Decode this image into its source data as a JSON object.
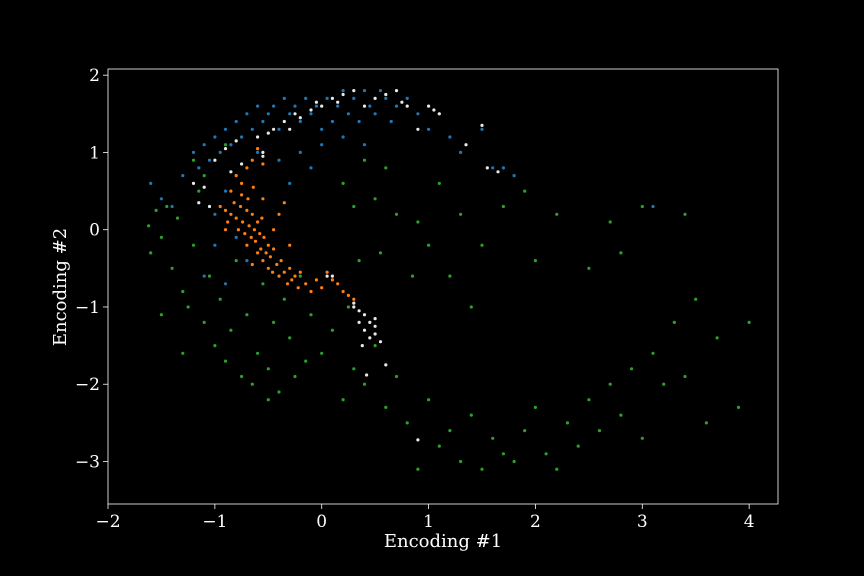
{
  "chart_data": {
    "type": "scatter",
    "xlabel": "Encoding #1",
    "ylabel": "Encoding #2",
    "xlim": [
      -2.0,
      4.27
    ],
    "ylim": [
      -3.55,
      2.08
    ],
    "xticks": [
      -2,
      -1,
      0,
      1,
      2,
      3,
      4
    ],
    "yticks": [
      -3,
      -2,
      -1,
      0,
      1,
      2
    ],
    "xtick_labels": [
      "−2",
      "−1",
      "0",
      "1",
      "2",
      "3",
      "4"
    ],
    "ytick_labels": [
      "−3",
      "−2",
      "−1",
      "0",
      "1",
      "2"
    ],
    "grid": false,
    "background": "#000000",
    "series": [
      {
        "color": "#2ca02c",
        "values": [
          [
            -1.62,
            0.05
          ],
          [
            -1.55,
            0.25
          ],
          [
            -1.5,
            -0.1
          ],
          [
            -1.45,
            0.3
          ],
          [
            -1.6,
            -0.3
          ],
          [
            -1.4,
            -0.5
          ],
          [
            -1.35,
            0.15
          ],
          [
            -1.3,
            -0.8
          ],
          [
            -1.25,
            -1.0
          ],
          [
            -1.2,
            -0.2
          ],
          [
            -1.15,
            0.5
          ],
          [
            -1.1,
            -1.2
          ],
          [
            -1.05,
            -0.6
          ],
          [
            -1.0,
            -1.5
          ],
          [
            -0.95,
            -0.9
          ],
          [
            -0.9,
            -1.7
          ],
          [
            -0.85,
            -1.3
          ],
          [
            -0.8,
            -0.4
          ],
          [
            -0.75,
            -1.9
          ],
          [
            -0.7,
            -1.1
          ],
          [
            -0.65,
            -2.0
          ],
          [
            -0.6,
            -1.6
          ],
          [
            -0.55,
            -0.7
          ],
          [
            -0.5,
            -1.8
          ],
          [
            -0.45,
            -1.2
          ],
          [
            -0.4,
            -2.1
          ],
          [
            -0.35,
            -0.9
          ],
          [
            -0.3,
            -1.4
          ],
          [
            -0.25,
            -1.9
          ],
          [
            -0.2,
            -0.6
          ],
          [
            -0.15,
            -1.7
          ],
          [
            -0.1,
            -1.1
          ],
          [
            0.0,
            -1.6
          ],
          [
            0.1,
            -1.3
          ],
          [
            0.2,
            -2.2
          ],
          [
            0.25,
            -1.0
          ],
          [
            0.3,
            -1.8
          ],
          [
            0.35,
            -0.4
          ],
          [
            0.4,
            -2.0
          ],
          [
            0.5,
            -1.5
          ],
          [
            0.55,
            -0.3
          ],
          [
            0.6,
            -2.3
          ],
          [
            0.7,
            -1.9
          ],
          [
            0.8,
            -2.5
          ],
          [
            0.9,
            -3.1
          ],
          [
            1.0,
            -2.2
          ],
          [
            1.1,
            -2.8
          ],
          [
            1.2,
            -2.6
          ],
          [
            1.3,
            -3.0
          ],
          [
            1.4,
            -2.4
          ],
          [
            1.5,
            -3.1
          ],
          [
            1.6,
            -2.7
          ],
          [
            1.7,
            -2.9
          ],
          [
            1.8,
            -3.0
          ],
          [
            1.9,
            -2.6
          ],
          [
            2.0,
            -2.3
          ],
          [
            2.1,
            -2.9
          ],
          [
            2.2,
            -3.1
          ],
          [
            2.3,
            -2.5
          ],
          [
            2.4,
            -2.8
          ],
          [
            2.5,
            -2.2
          ],
          [
            2.6,
            -2.6
          ],
          [
            2.7,
            -2.0
          ],
          [
            2.8,
            -2.4
          ],
          [
            2.9,
            -1.8
          ],
          [
            3.0,
            -2.7
          ],
          [
            3.1,
            -1.6
          ],
          [
            3.2,
            -2.0
          ],
          [
            3.3,
            -1.2
          ],
          [
            3.4,
            -1.9
          ],
          [
            3.5,
            -0.9
          ],
          [
            3.6,
            -2.5
          ],
          [
            3.7,
            -1.4
          ],
          [
            3.9,
            -2.3
          ],
          [
            4.0,
            -1.2
          ],
          [
            3.4,
            0.2
          ],
          [
            3.0,
            0.3
          ],
          [
            2.8,
            -0.3
          ],
          [
            2.7,
            0.1
          ],
          [
            2.5,
            -0.5
          ],
          [
            2.2,
            0.2
          ],
          [
            2.0,
            -0.4
          ],
          [
            1.9,
            0.5
          ],
          [
            1.7,
            0.3
          ],
          [
            1.5,
            -0.2
          ],
          [
            1.4,
            -1.0
          ],
          [
            1.3,
            0.2
          ],
          [
            1.2,
            -0.6
          ],
          [
            1.1,
            0.6
          ],
          [
            1.0,
            -0.2
          ],
          [
            0.9,
            0.1
          ],
          [
            0.85,
            -0.6
          ],
          [
            0.7,
            0.2
          ],
          [
            0.6,
            0.8
          ],
          [
            0.5,
            0.4
          ],
          [
            0.4,
            0.9
          ],
          [
            0.3,
            0.3
          ],
          [
            0.2,
            0.6
          ],
          [
            -1.2,
            0.9
          ],
          [
            -1.1,
            0.7
          ],
          [
            -0.9,
            1.1
          ],
          [
            -1.3,
            -1.6
          ],
          [
            -1.5,
            -1.1
          ],
          [
            -0.5,
            -2.2
          ]
        ]
      },
      {
        "color": "#1f77b4",
        "values": [
          [
            -1.6,
            0.6
          ],
          [
            -1.5,
            0.4
          ],
          [
            -1.4,
            0.3
          ],
          [
            -1.3,
            0.7
          ],
          [
            -1.2,
            1.0
          ],
          [
            -1.15,
            0.8
          ],
          [
            -1.1,
            1.1
          ],
          [
            -1.05,
            0.9
          ],
          [
            -1.0,
            1.2
          ],
          [
            -0.95,
            1.0
          ],
          [
            -0.9,
            1.3
          ],
          [
            -0.85,
            1.1
          ],
          [
            -0.8,
            1.4
          ],
          [
            -0.75,
            1.2
          ],
          [
            -0.7,
            1.5
          ],
          [
            -0.65,
            1.3
          ],
          [
            -0.6,
            1.6
          ],
          [
            -0.55,
            1.4
          ],
          [
            -0.5,
            1.5
          ],
          [
            -0.45,
            1.6
          ],
          [
            -0.4,
            1.3
          ],
          [
            -0.35,
            1.7
          ],
          [
            -0.3,
            1.5
          ],
          [
            -0.25,
            1.6
          ],
          [
            -0.2,
            1.4
          ],
          [
            -0.15,
            1.7
          ],
          [
            -0.1,
            1.5
          ],
          [
            -0.05,
            1.6
          ],
          [
            0.0,
            1.3
          ],
          [
            0.05,
            1.7
          ],
          [
            0.1,
            1.4
          ],
          [
            0.15,
            1.6
          ],
          [
            0.2,
            1.8
          ],
          [
            0.25,
            1.5
          ],
          [
            0.3,
            1.7
          ],
          [
            0.35,
            1.4
          ],
          [
            0.4,
            1.8
          ],
          [
            0.45,
            1.6
          ],
          [
            0.5,
            1.5
          ],
          [
            0.55,
            1.8
          ],
          [
            0.6,
            1.7
          ],
          [
            0.65,
            1.4
          ],
          [
            0.7,
            1.6
          ],
          [
            0.8,
            1.7
          ],
          [
            0.9,
            1.5
          ],
          [
            1.0,
            1.3
          ],
          [
            1.1,
            1.5
          ],
          [
            1.2,
            1.2
          ],
          [
            1.3,
            1.0
          ],
          [
            1.5,
            1.3
          ],
          [
            1.7,
            0.8
          ],
          [
            1.8,
            0.7
          ],
          [
            1.6,
            0.8
          ],
          [
            3.1,
            0.3
          ],
          [
            -1.0,
            0.2
          ],
          [
            -0.9,
            0.5
          ],
          [
            -1.0,
            -0.2
          ],
          [
            -0.8,
            -0.1
          ],
          [
            -0.7,
            -0.4
          ],
          [
            -0.6,
            1.0
          ],
          [
            -0.4,
            0.9
          ],
          [
            -0.3,
            0.6
          ],
          [
            -0.2,
            1.0
          ],
          [
            -0.1,
            0.8
          ],
          [
            0.0,
            1.1
          ],
          [
            0.2,
            1.2
          ],
          [
            0.4,
            1.1
          ],
          [
            -1.1,
            -0.6
          ],
          [
            -0.9,
            -0.7
          ]
        ]
      },
      {
        "color": "#ff7f0e",
        "values": [
          [
            -0.95,
            0.3
          ],
          [
            -0.9,
            0.25
          ],
          [
            -0.88,
            0.1
          ],
          [
            -0.85,
            0.2
          ],
          [
            -0.82,
            0.35
          ],
          [
            -0.8,
            0.15
          ],
          [
            -0.78,
            0.0
          ],
          [
            -0.76,
            0.3
          ],
          [
            -0.75,
            0.45
          ],
          [
            -0.74,
            0.1
          ],
          [
            -0.72,
            -0.05
          ],
          [
            -0.7,
            0.25
          ],
          [
            -0.69,
            0.4
          ],
          [
            -0.68,
            0.05
          ],
          [
            -0.66,
            -0.1
          ],
          [
            -0.65,
            0.2
          ],
          [
            -0.64,
            0.55
          ],
          [
            -0.63,
            0.0
          ],
          [
            -0.62,
            -0.15
          ],
          [
            -0.6,
            0.1
          ],
          [
            -0.6,
            -0.3
          ],
          [
            -0.58,
            -0.05
          ],
          [
            -0.57,
            -0.25
          ],
          [
            -0.56,
            0.15
          ],
          [
            -0.55,
            -0.4
          ],
          [
            -0.54,
            -0.1
          ],
          [
            -0.52,
            -0.3
          ],
          [
            -0.5,
            -0.5
          ],
          [
            -0.5,
            -0.2
          ],
          [
            -0.48,
            -0.35
          ],
          [
            -0.46,
            -0.55
          ],
          [
            -0.45,
            -0.25
          ],
          [
            -0.42,
            -0.45
          ],
          [
            -0.4,
            -0.6
          ],
          [
            -0.38,
            -0.4
          ],
          [
            -0.35,
            -0.55
          ],
          [
            -0.32,
            -0.7
          ],
          [
            -0.3,
            -0.5
          ],
          [
            -0.28,
            -0.65
          ],
          [
            -0.25,
            -0.6
          ],
          [
            -0.22,
            -0.75
          ],
          [
            -0.2,
            -0.55
          ],
          [
            -0.15,
            -0.7
          ],
          [
            -0.1,
            -0.8
          ],
          [
            -0.05,
            -0.65
          ],
          [
            0.0,
            -0.75
          ],
          [
            0.05,
            -0.55
          ],
          [
            0.1,
            -0.65
          ],
          [
            0.15,
            -0.7
          ],
          [
            0.2,
            -0.8
          ],
          [
            0.25,
            -0.85
          ],
          [
            0.3,
            -0.9
          ],
          [
            -0.7,
            0.8
          ],
          [
            -0.75,
            0.6
          ],
          [
            -0.8,
            0.7
          ],
          [
            -0.65,
            0.9
          ],
          [
            -0.6,
            1.05
          ],
          [
            -0.55,
            0.85
          ],
          [
            -0.85,
            0.5
          ],
          [
            -0.9,
            0.0
          ],
          [
            -0.35,
            0.35
          ],
          [
            -0.4,
            0.2
          ],
          [
            -0.45,
            0.0
          ],
          [
            -0.3,
            -0.2
          ],
          [
            -0.55,
            0.4
          ],
          [
            -0.7,
            -0.2
          ],
          [
            -0.65,
            -0.45
          ]
        ]
      },
      {
        "color": "#e8e8e8",
        "values": [
          [
            -1.1,
            0.55
          ],
          [
            -1.0,
            0.9
          ],
          [
            -0.9,
            1.05
          ],
          [
            -0.85,
            0.75
          ],
          [
            -0.8,
            1.15
          ],
          [
            -0.75,
            0.85
          ],
          [
            -0.6,
            1.2
          ],
          [
            -0.55,
            1.0
          ],
          [
            -0.5,
            1.25
          ],
          [
            -0.45,
            1.3
          ],
          [
            -0.35,
            1.4
          ],
          [
            -0.3,
            1.3
          ],
          [
            -0.25,
            1.5
          ],
          [
            -0.2,
            1.45
          ],
          [
            -0.1,
            1.55
          ],
          [
            -0.05,
            1.65
          ],
          [
            0.0,
            1.6
          ],
          [
            0.1,
            1.7
          ],
          [
            0.15,
            1.65
          ],
          [
            0.2,
            1.75
          ],
          [
            0.3,
            1.8
          ],
          [
            0.4,
            1.6
          ],
          [
            0.5,
            1.7
          ],
          [
            0.6,
            1.75
          ],
          [
            0.7,
            1.8
          ],
          [
            0.75,
            1.65
          ],
          [
            0.8,
            1.6
          ],
          [
            0.9,
            1.3
          ],
          [
            1.0,
            1.6
          ],
          [
            1.05,
            1.55
          ],
          [
            1.1,
            1.5
          ],
          [
            1.35,
            1.1
          ],
          [
            1.55,
            0.8
          ],
          [
            1.65,
            0.75
          ],
          [
            1.5,
            1.35
          ],
          [
            -1.2,
            0.6
          ],
          [
            -1.15,
            0.35
          ],
          [
            -1.05,
            0.3
          ],
          [
            0.05,
            -0.6
          ],
          [
            0.1,
            -0.6
          ],
          [
            0.3,
            -0.95
          ],
          [
            0.35,
            -1.05
          ],
          [
            0.4,
            -1.1
          ],
          [
            0.45,
            -1.2
          ],
          [
            0.5,
            -1.25
          ],
          [
            0.35,
            -1.2
          ],
          [
            0.4,
            -1.3
          ],
          [
            0.45,
            -1.4
          ],
          [
            0.5,
            -1.35
          ],
          [
            0.55,
            -1.45
          ],
          [
            0.6,
            -1.75
          ],
          [
            0.42,
            -1.88
          ],
          [
            0.38,
            -1.5
          ],
          [
            0.3,
            -1.0
          ],
          [
            0.5,
            -1.15
          ],
          [
            0.9,
            -2.72
          ],
          [
            -0.55,
            0.95
          ]
        ]
      }
    ]
  }
}
